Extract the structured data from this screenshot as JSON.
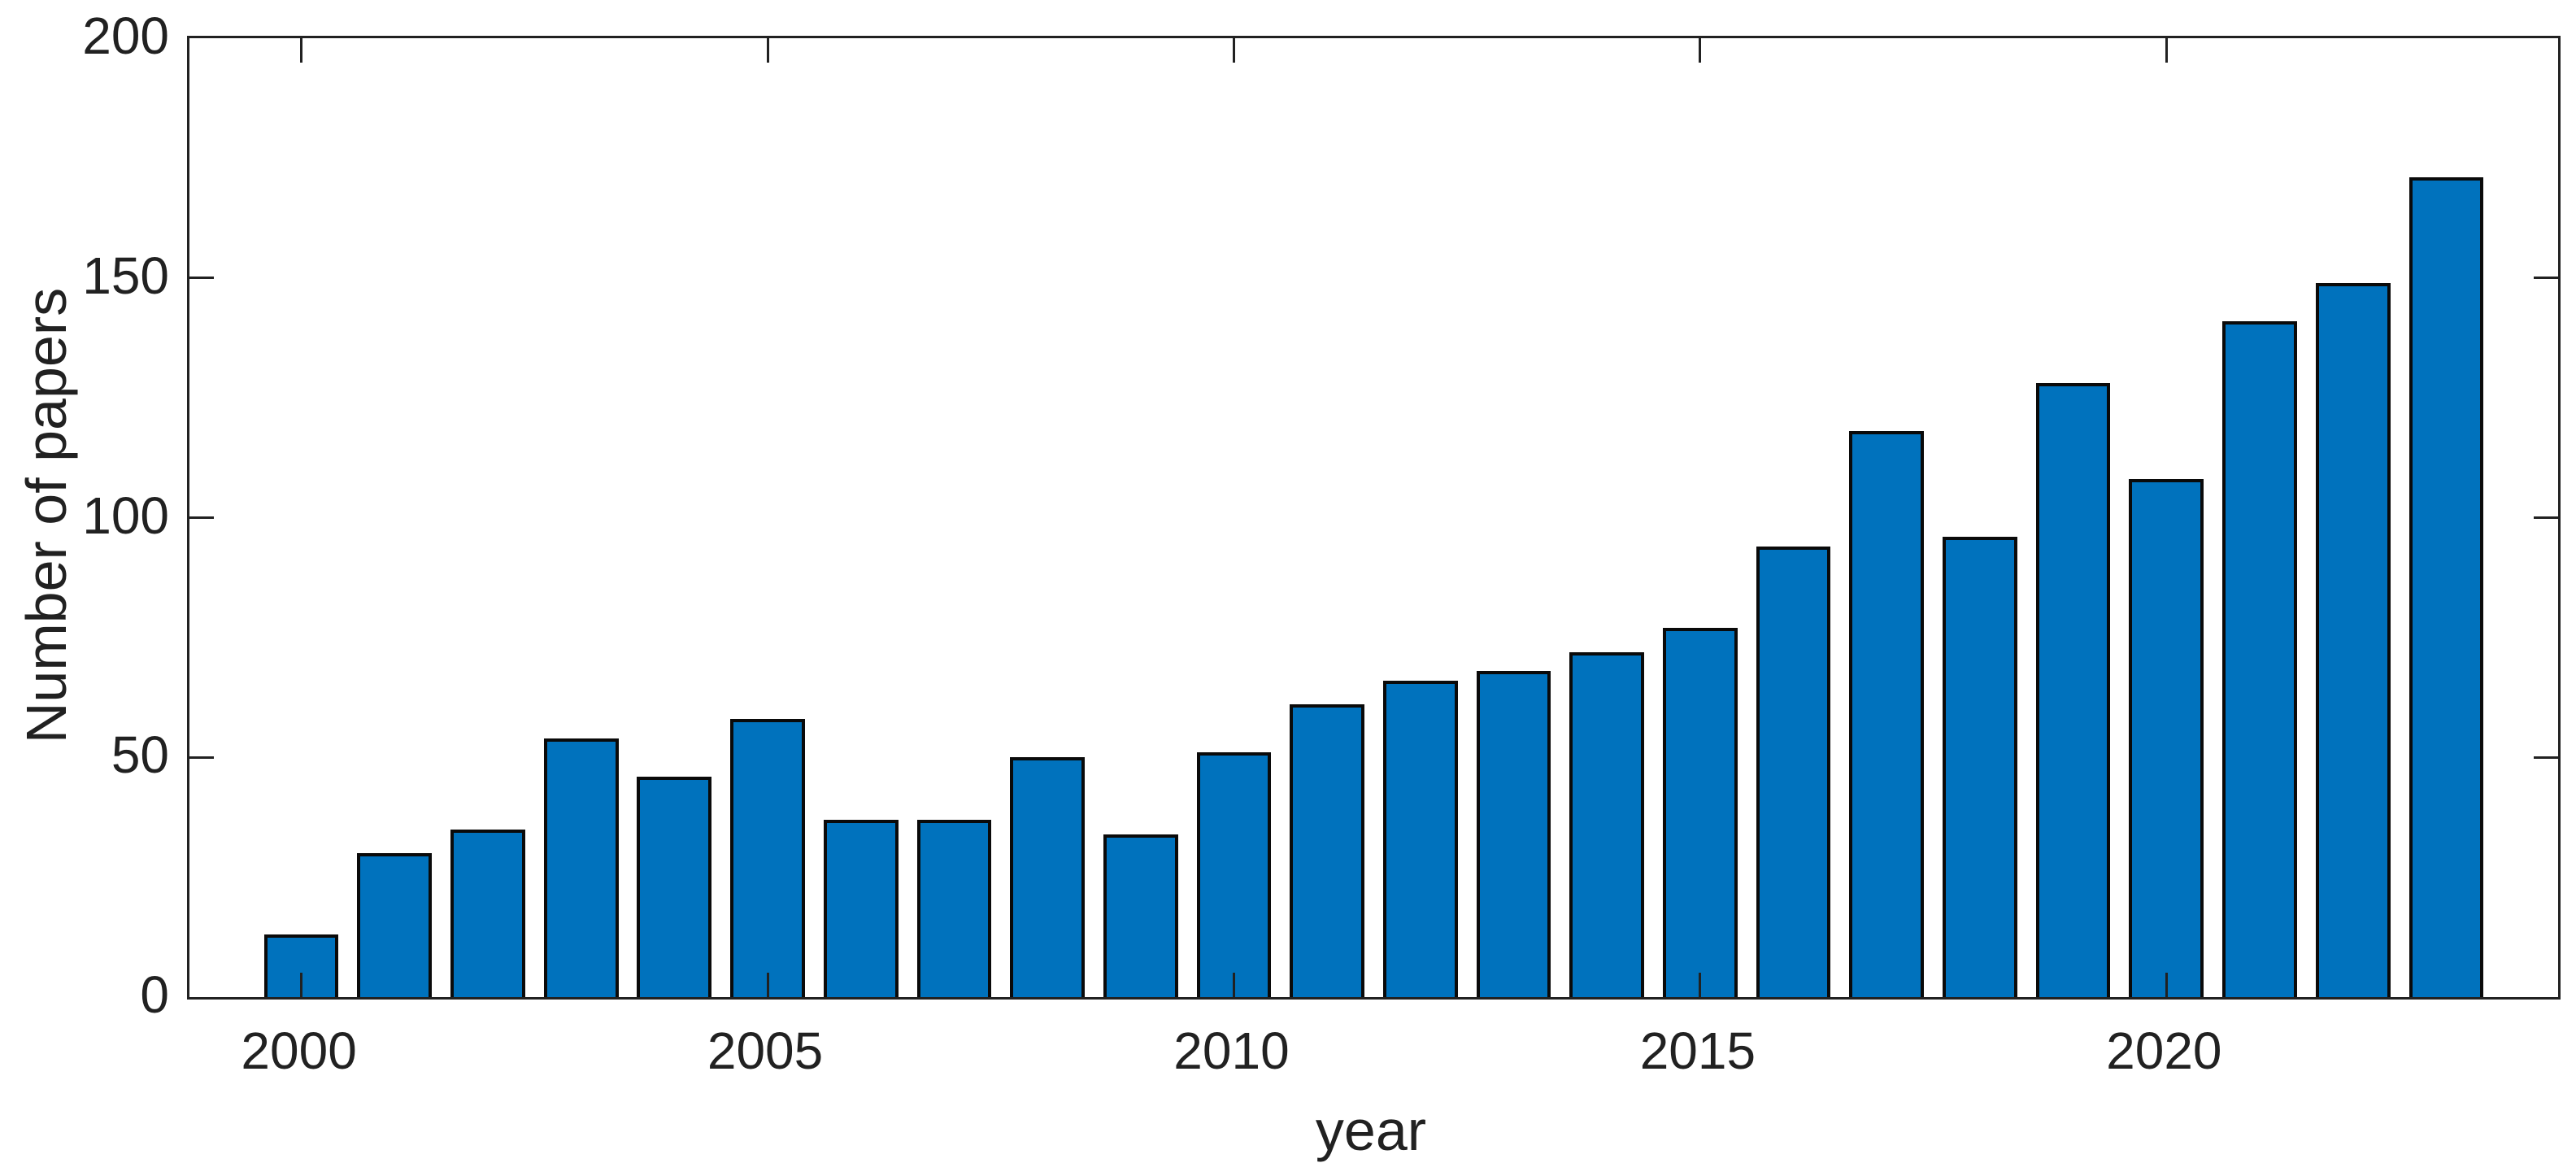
{
  "figure": {
    "background_color": "#ffffff",
    "axis_color": "#212121",
    "title": ""
  },
  "chart_data": {
    "type": "bar",
    "title": "",
    "xlabel": "year",
    "ylabel": "Number of papers",
    "categories": [
      2000,
      2001,
      2002,
      2003,
      2004,
      2005,
      2006,
      2007,
      2008,
      2009,
      2010,
      2011,
      2012,
      2013,
      2014,
      2015,
      2016,
      2017,
      2018,
      2019,
      2020,
      2021,
      2022,
      2023
    ],
    "values": [
      13,
      30,
      35,
      54,
      46,
      58,
      37,
      37,
      50,
      34,
      51,
      61,
      66,
      68,
      72,
      77,
      94,
      118,
      96,
      128,
      108,
      141,
      149,
      171
    ],
    "xticks": [
      2000,
      2005,
      2010,
      2015,
      2020
    ],
    "xtick_labels": [
      "2000",
      "2005",
      "2010",
      "2015",
      "2020"
    ],
    "yticks": [
      0,
      50,
      100,
      150,
      200
    ],
    "ytick_labels": [
      "0",
      "50",
      "100",
      "150",
      "200"
    ],
    "xlim": [
      1998.8,
      2024.2
    ],
    "ylim": [
      0,
      200
    ],
    "bar_width_fraction": 0.8,
    "bar_color": "#0072BD",
    "bar_edge_color": "#0a0a0a",
    "grid": "off",
    "legend": "none",
    "box": "on",
    "tick_direction": "in"
  }
}
